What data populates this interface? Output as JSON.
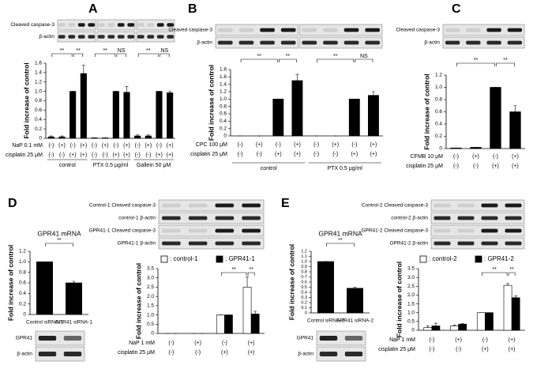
{
  "chart_data": [
    {
      "panel": "A",
      "type": "bar",
      "blot": [
        "Cleaved caspase-3",
        "β-actin"
      ],
      "ylabel": "Fold increase of control",
      "ylim": [
        0,
        1.6
      ],
      "yticks": [
        0,
        0.2,
        0.4,
        0.6,
        0.8,
        {
          "value": 1,
          "label": "1.0"
        },
        1.2,
        1.4,
        1.6
      ],
      "conditions": [
        {
          "label": "NaP  0.1 mM",
          "values": [
            "(-)",
            "(+)",
            "(-)",
            "(+)",
            "(-)",
            "(+)",
            "(-)",
            "(+)",
            "(-)",
            "(+)",
            "(-)",
            "(+)"
          ]
        },
        {
          "label": "cisplatin 25 μM",
          "values": [
            "(-)",
            "(-)",
            "(+)",
            "(+)",
            "(-)",
            "(-)",
            "(+)",
            "(+)",
            "(-)",
            "(-)",
            "(+)",
            "(+)"
          ]
        }
      ],
      "groups": [
        "control",
        "PTX  0.5 μg/ml",
        "Gallein  50 μM"
      ],
      "series": [
        {
          "color": "#000000",
          "values": [
            0.03,
            0.03,
            1.0,
            1.38,
            0.01,
            0.01,
            1.0,
            0.98,
            0.05,
            0.05,
            1.0,
            0.97
          ],
          "errors": [
            0.02,
            0.02,
            0,
            0.18,
            0,
            0,
            0,
            0.12,
            0.02,
            0.02,
            0,
            0.03
          ]
        }
      ],
      "significance": [
        "**",
        "**",
        "**",
        "NS",
        "**",
        "NS"
      ]
    },
    {
      "panel": "B",
      "type": "bar",
      "blot": [
        "Cleaved caspase-3",
        "β-actin"
      ],
      "ylabel": "Fold increase of control",
      "ylim": [
        0,
        1.8
      ],
      "yticks": [
        0,
        0.2,
        0.4,
        0.6,
        0.8,
        {
          "value": 1,
          "label": "1.0"
        },
        1.2,
        1.4,
        1.6,
        1.8
      ],
      "conditions": [
        {
          "label": "CPC  100 μM",
          "values": [
            "(-)",
            "(+)",
            "(-)",
            "(+)",
            "(-)",
            "(+)",
            "(-)",
            "(+)"
          ]
        },
        {
          "label": "cisplatin 25 μM",
          "values": [
            "(-)",
            "(-)",
            "(+)",
            "(+)",
            "(-)",
            "(-)",
            "(+)",
            "(+)"
          ]
        }
      ],
      "groups": [
        "control",
        "PTX  0.5 μg/ml"
      ],
      "series": [
        {
          "color": "#000000",
          "values": [
            0,
            0,
            1.0,
            1.5,
            0,
            0,
            1.0,
            1.1
          ],
          "errors": [
            0,
            0,
            0,
            0.17,
            0,
            0,
            0,
            0.1
          ]
        }
      ],
      "significance": [
        "**",
        "**",
        "**",
        "NS"
      ]
    },
    {
      "panel": "C",
      "type": "bar",
      "blot": [
        "Cleaved caspase-3",
        "β-actin"
      ],
      "ylabel": "Fold increase of control",
      "ylim": [
        0,
        1.2
      ],
      "yticks": [
        0,
        0.2,
        0.4,
        0.6,
        0.8,
        {
          "value": 1,
          "label": "1.0"
        },
        1.2
      ],
      "conditions": [
        {
          "label": "CFMB  10 μM",
          "values": [
            "(-)",
            "(+)",
            "(-)",
            "(+)"
          ]
        },
        {
          "label": "cisplatin  25 μM",
          "values": [
            "(-)",
            "(-)",
            "(+)",
            "(+)"
          ]
        }
      ],
      "series": [
        {
          "color": "#000000",
          "values": [
            0.01,
            0.02,
            1.0,
            0.6
          ],
          "errors": [
            0,
            0,
            0,
            0.1
          ]
        }
      ],
      "significance": [
        "**",
        "**"
      ]
    },
    {
      "panel": "D",
      "type": "bar",
      "title": "GPR41 mRNA",
      "blot": [
        "GPR41",
        "β-actin"
      ],
      "ylabel": "Fold increase of control",
      "ylim": [
        0,
        1.2
      ],
      "yticks": [
        0,
        0.2,
        0.4,
        0.6,
        0.8,
        {
          "value": 1,
          "label": "1.0"
        },
        1.2
      ],
      "categories": [
        "Control siRNA-1",
        "GPR41 siRNA-1"
      ],
      "series": [
        {
          "color": "#000000",
          "values": [
            1.0,
            0.6
          ],
          "errors": [
            0,
            0.03
          ]
        }
      ],
      "significance": [
        "**"
      ]
    },
    {
      "type": "bar",
      "blot": [
        "Control-1 Cleaved caspase-3",
        "control-1 β-actin",
        "GPR41-1 Cleaved caspase-3",
        "GPR41-1 β-actin"
      ],
      "ylabel": "Fold  increase of control",
      "ylim": [
        0,
        3.5
      ],
      "yticks": [
        0,
        0.5,
        {
          "value": 1,
          "label": "1.0"
        },
        1.5,
        {
          "value": 2,
          "label": "2.0"
        },
        2.5,
        {
          "value": 3,
          "label": "3.0"
        },
        3.5
      ],
      "conditions": [
        {
          "label": "NaP    1 mM",
          "values": [
            "(-)",
            "(+)",
            "(-)",
            "(+)"
          ]
        },
        {
          "label": "cisplatin 25 μM",
          "values": [
            "(-)",
            "(-)",
            "(+)",
            "(+)"
          ]
        }
      ],
      "series": [
        {
          "name": ": control-1",
          "color": "#ffffff",
          "values": [
            0,
            0,
            1.0,
            2.5
          ],
          "errors": [
            0,
            0,
            0,
            0.55
          ]
        },
        {
          "name": ": GPR41-1",
          "color": "#000000",
          "values": [
            0,
            0,
            1.0,
            1.05
          ],
          "errors": [
            0,
            0,
            0,
            0.15
          ]
        }
      ],
      "significance": [
        "**",
        "**"
      ]
    },
    {
      "panel": "E",
      "type": "bar",
      "title": "GPR41 mRNA",
      "blot": [
        "GPR41",
        "β-actin"
      ],
      "ylabel": "Fold increase of control",
      "ylim": [
        0,
        1.2
      ],
      "yticks": [
        0,
        0.1,
        0.2,
        0.3,
        0.4,
        0.5,
        0.6,
        0.7,
        0.8,
        0.9,
        {
          "value": 1,
          "label": "1.0"
        },
        1.1,
        1.2
      ],
      "categories": [
        "Control siRNA-2",
        "GPR41 siRNA-2"
      ],
      "series": [
        {
          "color": "#000000",
          "values": [
            1.0,
            0.48
          ],
          "errors": [
            0,
            0.02
          ]
        }
      ],
      "significance": [
        "**"
      ]
    },
    {
      "type": "bar",
      "blot": [
        "Control-2 Cleaved caspase-3",
        "control-2 β-actin",
        "GPR41-2 Cleaved caspase-3",
        "GPR41-2 β-actin"
      ],
      "ylabel": "Fold increase of control",
      "ylim": [
        0,
        3.5
      ],
      "yticks": [
        0,
        0.5,
        {
          "value": 1,
          "label": "1.0"
        },
        1.5,
        {
          "value": 2,
          "label": "2.0"
        },
        2.5,
        {
          "value": 3,
          "label": "3.0"
        },
        3.5
      ],
      "conditions": [
        {
          "label": "NaP    1 mM",
          "values": [
            "(-)",
            "(+)",
            "(-)",
            "(+)"
          ]
        },
        {
          "label": "cisplatin 25 μM",
          "values": [
            "(-)",
            "(-)",
            "(+)",
            "(+)"
          ]
        }
      ],
      "series": [
        {
          "name": ": control-2",
          "color": "#ffffff",
          "values": [
            0.15,
            0.25,
            1.0,
            2.55
          ],
          "errors": [
            0.1,
            0.05,
            0,
            0.1
          ]
        },
        {
          "name": ": GPR41-2",
          "color": "#000000",
          "values": [
            0.25,
            0.35,
            1.0,
            1.85
          ],
          "errors": [
            0.15,
            0.03,
            0,
            0.1
          ]
        }
      ],
      "significance": [
        "**",
        "**"
      ]
    }
  ]
}
